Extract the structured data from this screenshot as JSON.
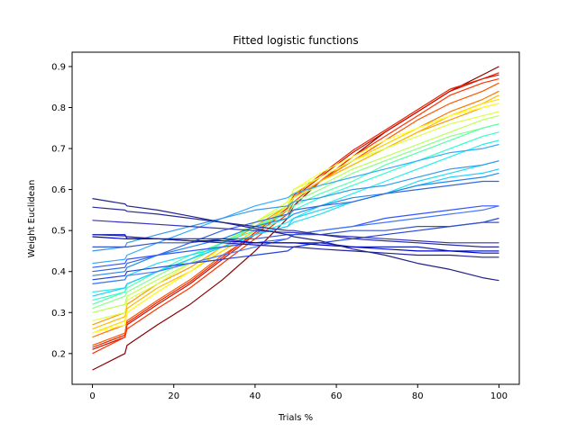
{
  "chart_data": {
    "type": "line",
    "title": "Fitted logistic functions",
    "xlabel": "Trials %",
    "ylabel": "Weight Euclidean",
    "xlim": [
      -5,
      105
    ],
    "ylim": [
      0.125,
      0.935
    ],
    "xticks": [
      0,
      20,
      40,
      60,
      80,
      100
    ],
    "yticks": [
      0.2,
      0.3,
      0.4,
      0.5,
      0.6,
      0.7,
      0.8,
      0.9
    ],
    "grid": false,
    "legend": "none",
    "x": [
      0,
      8,
      8.5,
      16,
      24,
      32,
      40,
      48,
      49.5,
      56,
      64,
      72,
      80,
      88,
      96,
      100
    ],
    "series": [
      {
        "color": "#8b0000",
        "values": [
          0.16,
          0.2,
          0.22,
          0.27,
          0.32,
          0.38,
          0.45,
          0.53,
          0.56,
          0.62,
          0.68,
          0.74,
          0.79,
          0.84,
          0.88,
          0.9
        ]
      },
      {
        "color": "#cc1100",
        "values": [
          0.21,
          0.24,
          0.27,
          0.32,
          0.37,
          0.43,
          0.49,
          0.55,
          0.58,
          0.63,
          0.69,
          0.74,
          0.79,
          0.84,
          0.87,
          0.88
        ]
      },
      {
        "color": "#e62200",
        "values": [
          0.215,
          0.245,
          0.275,
          0.325,
          0.375,
          0.435,
          0.495,
          0.555,
          0.585,
          0.635,
          0.695,
          0.745,
          0.795,
          0.845,
          0.87,
          0.885
        ]
      },
      {
        "color": "#ff3300",
        "values": [
          0.2,
          0.24,
          0.26,
          0.31,
          0.36,
          0.42,
          0.48,
          0.54,
          0.57,
          0.62,
          0.68,
          0.73,
          0.78,
          0.83,
          0.86,
          0.87
        ]
      },
      {
        "color": "#ff5500",
        "values": [
          0.22,
          0.25,
          0.28,
          0.33,
          0.38,
          0.44,
          0.49,
          0.55,
          0.58,
          0.62,
          0.67,
          0.72,
          0.77,
          0.81,
          0.84,
          0.86
        ]
      },
      {
        "color": "#ff7700",
        "values": [
          0.24,
          0.27,
          0.3,
          0.35,
          0.4,
          0.45,
          0.5,
          0.55,
          0.58,
          0.62,
          0.67,
          0.71,
          0.75,
          0.79,
          0.82,
          0.84
        ]
      },
      {
        "color": "#ff9900",
        "values": [
          0.27,
          0.3,
          0.32,
          0.37,
          0.41,
          0.46,
          0.51,
          0.56,
          0.58,
          0.62,
          0.66,
          0.7,
          0.74,
          0.77,
          0.8,
          0.81
        ]
      },
      {
        "color": "#ffbb00",
        "values": [
          0.26,
          0.29,
          0.31,
          0.36,
          0.4,
          0.45,
          0.5,
          0.55,
          0.58,
          0.62,
          0.66,
          0.7,
          0.74,
          0.78,
          0.81,
          0.83
        ]
      },
      {
        "color": "#ffdd00",
        "values": [
          0.25,
          0.28,
          0.3,
          0.35,
          0.4,
          0.45,
          0.5,
          0.56,
          0.59,
          0.63,
          0.67,
          0.71,
          0.75,
          0.78,
          0.81,
          0.82
        ]
      },
      {
        "color": "#ffff33",
        "values": [
          0.25,
          0.27,
          0.3,
          0.35,
          0.4,
          0.46,
          0.52,
          0.57,
          0.6,
          0.64,
          0.68,
          0.72,
          0.75,
          0.78,
          0.8,
          0.81
        ]
      },
      {
        "color": "#ddff44",
        "values": [
          0.28,
          0.3,
          0.33,
          0.37,
          0.42,
          0.47,
          0.52,
          0.57,
          0.6,
          0.63,
          0.67,
          0.7,
          0.73,
          0.76,
          0.78,
          0.79
        ]
      },
      {
        "color": "#bbff55",
        "values": [
          0.3,
          0.32,
          0.34,
          0.38,
          0.42,
          0.47,
          0.52,
          0.56,
          0.58,
          0.61,
          0.65,
          0.68,
          0.71,
          0.74,
          0.77,
          0.78
        ]
      },
      {
        "color": "#88ff88",
        "values": [
          0.31,
          0.34,
          0.35,
          0.39,
          0.43,
          0.47,
          0.51,
          0.55,
          0.57,
          0.6,
          0.64,
          0.67,
          0.7,
          0.73,
          0.75,
          0.76
        ]
      },
      {
        "color": "#55ffaa",
        "values": [
          0.32,
          0.35,
          0.36,
          0.4,
          0.44,
          0.47,
          0.51,
          0.54,
          0.56,
          0.59,
          0.62,
          0.66,
          0.69,
          0.72,
          0.75,
          0.76
        ]
      },
      {
        "color": "#33ffcc",
        "values": [
          0.33,
          0.35,
          0.37,
          0.4,
          0.43,
          0.47,
          0.5,
          0.53,
          0.55,
          0.58,
          0.61,
          0.64,
          0.67,
          0.7,
          0.73,
          0.74
        ]
      },
      {
        "color": "#22eeee",
        "values": [
          0.35,
          0.36,
          0.37,
          0.4,
          0.43,
          0.46,
          0.49,
          0.52,
          0.53,
          0.56,
          0.59,
          0.62,
          0.65,
          0.68,
          0.71,
          0.72
        ]
      },
      {
        "color": "#22ddee",
        "values": [
          0.37,
          0.38,
          0.39,
          0.42,
          0.44,
          0.46,
          0.49,
          0.51,
          0.52,
          0.54,
          0.57,
          0.59,
          0.62,
          0.64,
          0.66,
          0.67
        ]
      },
      {
        "color": "#22ccff",
        "values": [
          0.34,
          0.36,
          0.37,
          0.4,
          0.43,
          0.46,
          0.49,
          0.51,
          0.53,
          0.55,
          0.57,
          0.59,
          0.61,
          0.63,
          0.64,
          0.65
        ]
      },
      {
        "color": "#33aaff",
        "values": [
          0.42,
          0.43,
          0.44,
          0.47,
          0.5,
          0.53,
          0.56,
          0.58,
          0.59,
          0.61,
          0.63,
          0.65,
          0.67,
          0.69,
          0.7,
          0.71
        ]
      },
      {
        "color": "#3399ee",
        "values": [
          0.45,
          0.46,
          0.47,
          0.49,
          0.51,
          0.53,
          0.55,
          0.56,
          0.57,
          0.58,
          0.6,
          0.61,
          0.63,
          0.65,
          0.66,
          0.67
        ]
      },
      {
        "color": "#2288ee",
        "values": [
          0.39,
          0.4,
          0.41,
          0.44,
          0.46,
          0.48,
          0.51,
          0.53,
          0.54,
          0.56,
          0.58,
          0.59,
          0.61,
          0.62,
          0.63,
          0.64
        ]
      },
      {
        "color": "#3366dd",
        "values": [
          0.4,
          0.41,
          0.42,
          0.44,
          0.47,
          0.5,
          0.52,
          0.54,
          0.55,
          0.56,
          0.57,
          0.59,
          0.6,
          0.61,
          0.62,
          0.62
        ]
      },
      {
        "color": "#3355ff",
        "values": [
          0.41,
          0.42,
          0.43,
          0.44,
          0.45,
          0.46,
          0.47,
          0.48,
          0.49,
          0.5,
          0.51,
          0.53,
          0.54,
          0.55,
          0.56,
          0.56
        ]
      },
      {
        "color": "#2244dd",
        "values": [
          0.38,
          0.39,
          0.4,
          0.41,
          0.42,
          0.43,
          0.44,
          0.45,
          0.46,
          0.47,
          0.48,
          0.49,
          0.5,
          0.51,
          0.52,
          0.53
        ]
      },
      {
        "color": "#4477ff",
        "values": [
          0.37,
          0.38,
          0.39,
          0.4,
          0.42,
          0.44,
          0.46,
          0.48,
          0.49,
          0.5,
          0.51,
          0.52,
          0.53,
          0.54,
          0.55,
          0.56
        ]
      },
      {
        "color": "#3355cc",
        "values": [
          0.46,
          0.46,
          0.46,
          0.47,
          0.47,
          0.48,
          0.48,
          0.49,
          0.49,
          0.49,
          0.5,
          0.5,
          0.51,
          0.51,
          0.52,
          0.52
        ]
      },
      {
        "color": "#1122bb",
        "values": [
          0.49,
          0.49,
          0.48,
          0.48,
          0.48,
          0.48,
          0.47,
          0.47,
          0.47,
          0.47,
          0.46,
          0.46,
          0.46,
          0.45,
          0.45,
          0.45
        ]
      },
      {
        "color": "#0000cc",
        "values": [
          0.485,
          0.48,
          0.48,
          0.48,
          0.475,
          0.475,
          0.47,
          0.47,
          0.47,
          0.465,
          0.46,
          0.455,
          0.45,
          0.45,
          0.445,
          0.445
        ]
      },
      {
        "color": "#222299",
        "values": [
          0.49,
          0.487,
          0.485,
          0.48,
          0.475,
          0.47,
          0.465,
          0.46,
          0.46,
          0.455,
          0.45,
          0.445,
          0.44,
          0.44,
          0.435,
          0.435
        ]
      },
      {
        "color": "#3333bb",
        "values": [
          0.525,
          0.52,
          0.52,
          0.515,
          0.51,
          0.505,
          0.5,
          0.495,
          0.495,
          0.49,
          0.485,
          0.48,
          0.475,
          0.47,
          0.47,
          0.47
        ]
      },
      {
        "color": "#2a2a99",
        "values": [
          0.557,
          0.55,
          0.547,
          0.54,
          0.53,
          0.52,
          0.51,
          0.5,
          0.5,
          0.49,
          0.48,
          0.475,
          0.47,
          0.465,
          0.46,
          0.46
        ]
      },
      {
        "color": "#222288",
        "values": [
          0.578,
          0.565,
          0.56,
          0.55,
          0.535,
          0.52,
          0.505,
          0.49,
          0.485,
          0.475,
          0.455,
          0.44,
          0.42,
          0.405,
          0.385,
          0.378
        ]
      }
    ]
  }
}
